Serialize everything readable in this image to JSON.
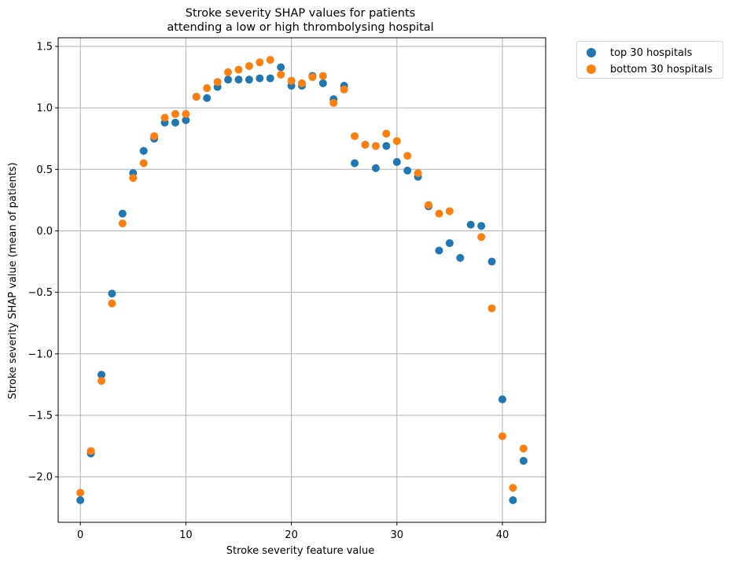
{
  "chart_data": {
    "type": "scatter",
    "title": "Stroke severity SHAP values for patients\nattending a low or high thrombolysing hospital",
    "xlabel": "Stroke severity feature value",
    "ylabel": "Stroke severity SHAP value (mean of patients)",
    "xlim": [
      -2.1,
      44.1
    ],
    "ylim": [
      -2.37,
      1.57
    ],
    "xticks": [
      0,
      10,
      20,
      30,
      40
    ],
    "xtick_labels": [
      "0",
      "10",
      "20",
      "30",
      "40"
    ],
    "yticks": [
      -2.0,
      -1.5,
      -1.0,
      -0.5,
      0.0,
      0.5,
      1.0,
      1.5
    ],
    "ytick_labels": [
      "−2.0",
      "−1.5",
      "−1.0",
      "−0.5",
      "0.0",
      "0.5",
      "1.0",
      "1.5"
    ],
    "grid": true,
    "legend_position": "outside-top-right",
    "series": [
      {
        "name": "top 30 hospitals",
        "color": "#1f77b4",
        "x": [
          0,
          1,
          2,
          3,
          4,
          5,
          6,
          7,
          8,
          9,
          10,
          11,
          12,
          13,
          14,
          15,
          16,
          17,
          18,
          19,
          20,
          21,
          22,
          23,
          24,
          25,
          26,
          27,
          28,
          29,
          30,
          31,
          32,
          33,
          34,
          35,
          36,
          37,
          38,
          39,
          40,
          41,
          42
        ],
        "y": [
          -2.19,
          -1.81,
          -1.17,
          -0.51,
          0.14,
          0.47,
          0.65,
          0.75,
          0.88,
          0.88,
          0.9,
          1.09,
          1.08,
          1.17,
          1.23,
          1.23,
          1.23,
          1.24,
          1.24,
          1.33,
          1.18,
          1.18,
          1.26,
          1.2,
          1.07,
          1.18,
          0.55,
          0.7,
          0.51,
          0.69,
          0.56,
          0.49,
          0.44,
          0.2,
          -0.16,
          -0.1,
          -0.22,
          0.05,
          0.04,
          -0.25,
          -1.37,
          -2.19,
          -1.87
        ]
      },
      {
        "name": "bottom 30 hospitals",
        "color": "#ff7f0e",
        "x": [
          0,
          1,
          2,
          3,
          4,
          5,
          6,
          7,
          8,
          9,
          10,
          11,
          12,
          13,
          14,
          15,
          16,
          17,
          18,
          19,
          20,
          21,
          22,
          23,
          24,
          25,
          26,
          27,
          28,
          29,
          30,
          31,
          32,
          33,
          34,
          35,
          38,
          39,
          40,
          41,
          42
        ],
        "y": [
          -2.13,
          -1.79,
          -1.22,
          -0.59,
          0.06,
          0.43,
          0.55,
          0.77,
          0.92,
          0.95,
          0.95,
          1.09,
          1.16,
          1.21,
          1.29,
          1.31,
          1.34,
          1.37,
          1.39,
          1.27,
          1.22,
          1.2,
          1.25,
          1.26,
          1.04,
          1.15,
          0.77,
          0.7,
          0.69,
          0.79,
          0.73,
          0.61,
          0.47,
          0.21,
          0.14,
          0.16,
          -0.05,
          -0.63,
          -1.67,
          -2.09,
          -1.77
        ]
      }
    ]
  }
}
